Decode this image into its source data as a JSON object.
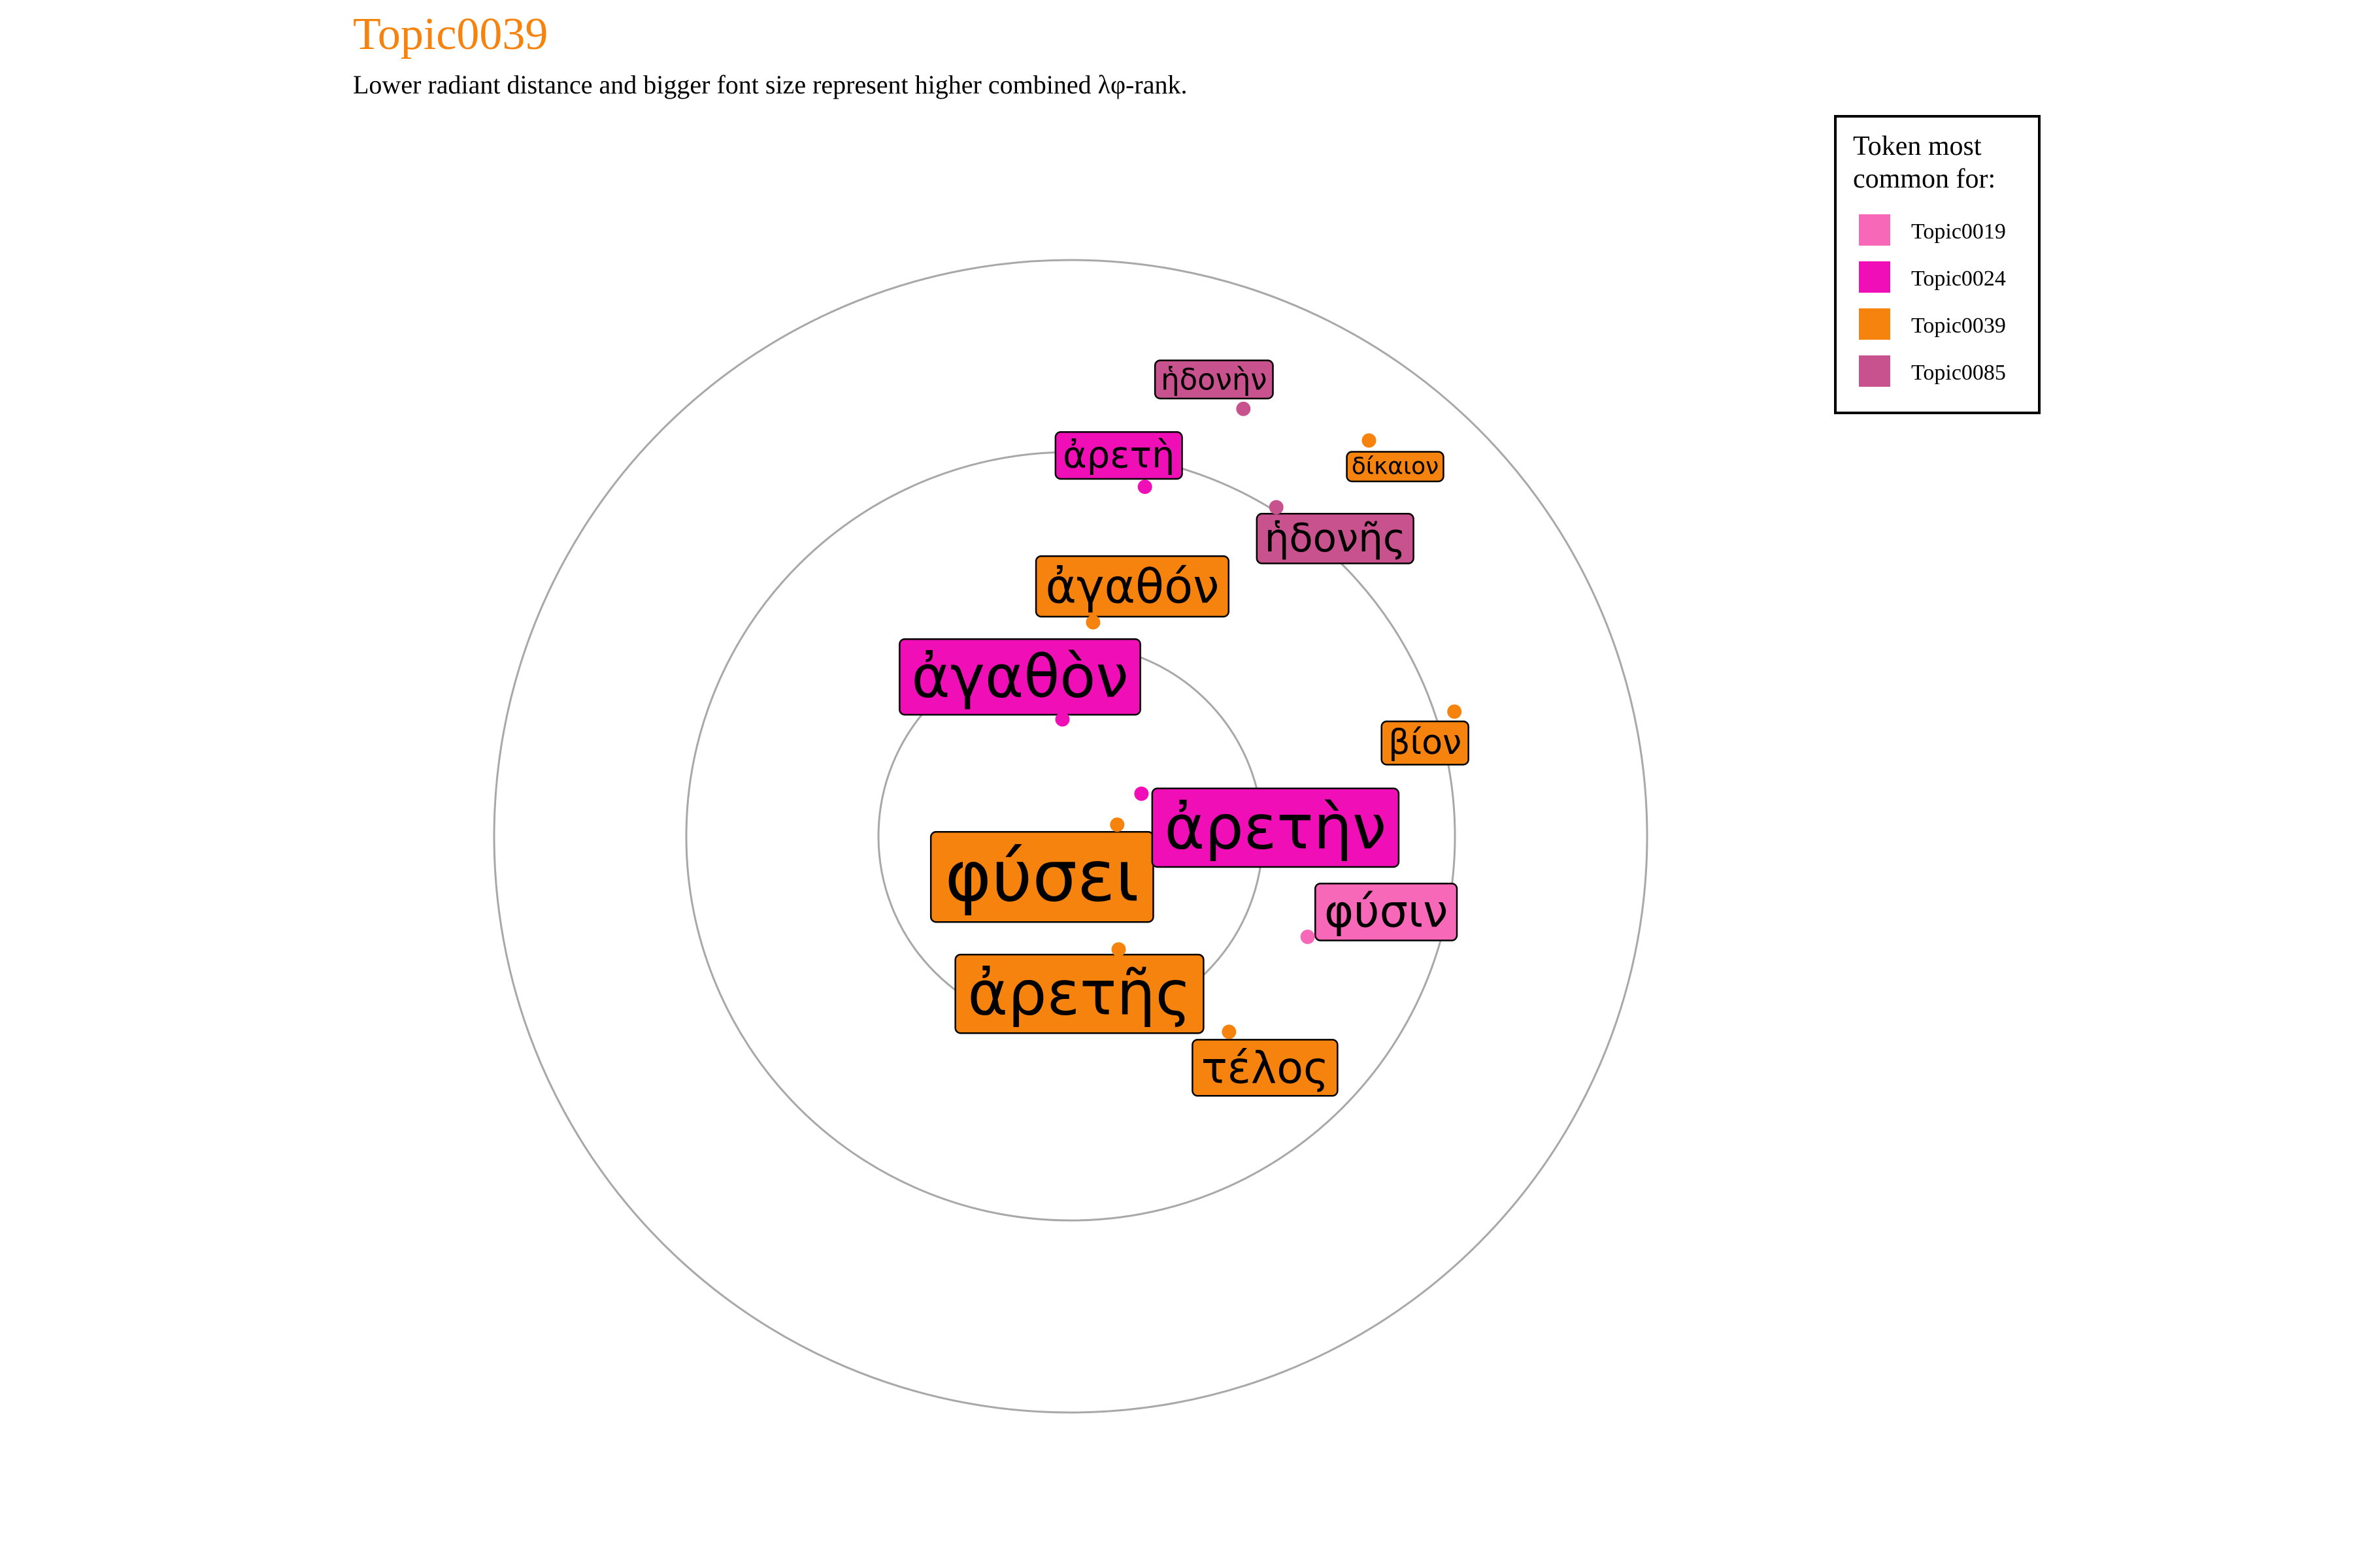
{
  "chart_data": {
    "type": "scatter",
    "title": "Topic0039",
    "subtitle": "Lower radiant distance and bigger font size represent higher combined λφ-rank.",
    "title_color": "#F7830F",
    "rings": [
      1,
      2,
      3
    ],
    "legend": {
      "title": "Token most common for:",
      "title_lines": [
        "Token most",
        "common for:"
      ],
      "placement": "top-right",
      "entries": [
        {
          "name": "Topic0019",
          "color": "#F768B9"
        },
        {
          "name": "Topic0024",
          "color": "#F00FB6"
        },
        {
          "name": "Topic0039",
          "color": "#F7830F"
        },
        {
          "name": "Topic0085",
          "color": "#C8528E"
        }
      ]
    },
    "points": [
      {
        "token": "φύσει",
        "topic": "Topic0039",
        "angle_deg": 76,
        "radius": 0.25,
        "size": 5.0
      },
      {
        "token": "ἀρετὴν",
        "topic": "Topic0024",
        "angle_deg": 59,
        "radius": 0.43,
        "size": 4.2
      },
      {
        "token": "ἀγαθὸν",
        "topic": "Topic0024",
        "angle_deg": -4,
        "radius": 0.61,
        "size": 4.0
      },
      {
        "token": "ἀρετῆς",
        "topic": "Topic0039",
        "angle_deg": 157,
        "radius": 0.64,
        "size": 4.2
      },
      {
        "token": "ἀγαθόν",
        "topic": "Topic0039",
        "angle_deg": 6,
        "radius": 1.12,
        "size": 3.0
      },
      {
        "token": "φύσιν",
        "topic": "Topic0019",
        "angle_deg": 113,
        "radius": 1.34,
        "size": 2.8
      },
      {
        "token": "τέλος",
        "topic": "Topic0039",
        "angle_deg": 141,
        "radius": 1.31,
        "size": 2.7
      },
      {
        "token": "ἀρετὴ",
        "topic": "Topic0024",
        "angle_deg": 12,
        "radius": 1.86,
        "size": 2.1
      },
      {
        "token": "ἡδονῆς",
        "topic": "Topic0085",
        "angle_deg": 32,
        "radius": 2.02,
        "size": 2.3
      },
      {
        "token": "βίον",
        "topic": "Topic0039",
        "angle_deg": 72,
        "radius": 2.1,
        "size": 1.9
      },
      {
        "token": "ἡδονὴν",
        "topic": "Topic0085",
        "angle_deg": 22,
        "radius": 2.4,
        "size": 1.5
      },
      {
        "token": "δίκαιον",
        "topic": "Topic0039",
        "angle_deg": 37,
        "radius": 2.58,
        "size": 1.0
      }
    ]
  }
}
